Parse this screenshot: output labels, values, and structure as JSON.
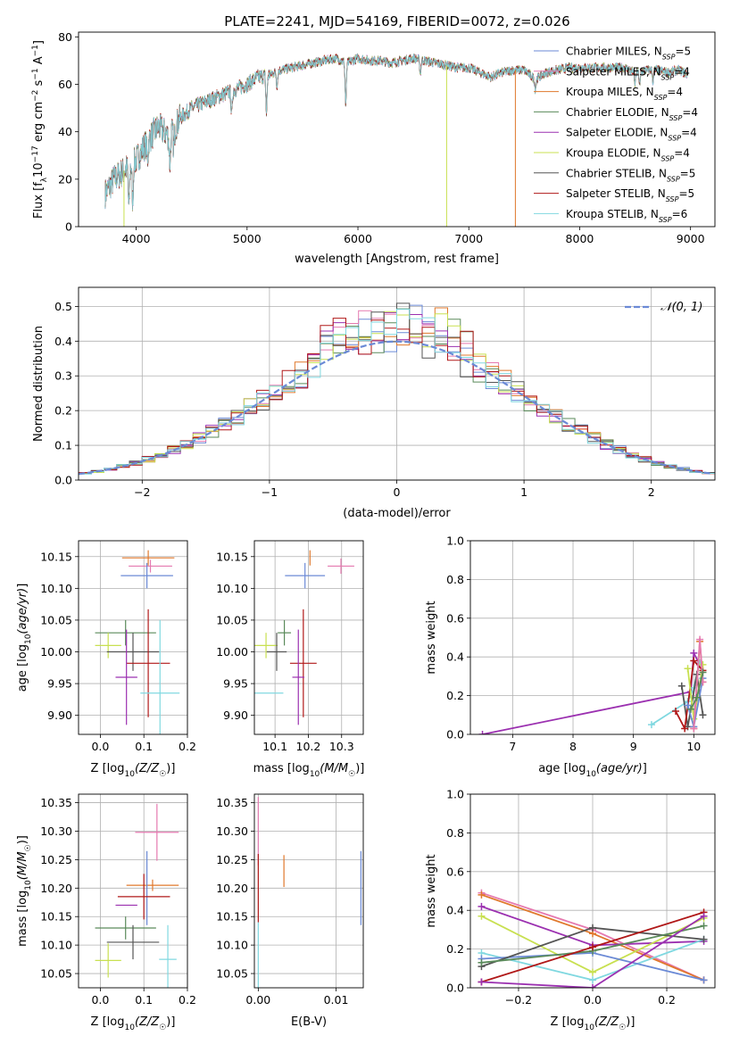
{
  "figure": {
    "title": "PLATE=2241, MJD=54169, FIBERID=0072, z=0.026"
  },
  "palette": {
    "Chabrier MILES": "#6b8ad6",
    "Salpeter MILES": "#e57ab0",
    "Kroupa MILES": "#e0782c",
    "Chabrier ELODIE": "#5a8a5a",
    "Salpeter ELODIE": "#9b30b0",
    "Kroupa ELODIE": "#c8e050",
    "Chabrier STELIB": "#555555",
    "Salpeter STELIB": "#b01818",
    "Kroupa STELIB": "#80d8e0"
  },
  "chart_data": [
    {
      "id": "spectrum",
      "type": "line",
      "title": "PLATE=2241, MJD=54169, FIBERID=0072, z=0.026",
      "xlabel": "wavelength [Angstrom, rest frame]",
      "ylabel": "Flux [f_λ 10^-17 erg cm^-2 s^-1 A^-1]",
      "xlim": [
        3480,
        9220
      ],
      "ylim": [
        0,
        82
      ],
      "xticks": [
        4000,
        5000,
        6000,
        7000,
        8000,
        9000
      ],
      "yticks": [
        0,
        20,
        40,
        60,
        80
      ],
      "grid": false,
      "legend_position": "top-right",
      "legend": [
        {
          "label": "Chabrier MILES, N",
          "sub": "SSP",
          "suffix": "=5"
        },
        {
          "label": "Salpeter MILES, N",
          "sub": "SSP",
          "suffix": "=4"
        },
        {
          "label": "Kroupa MILES, N",
          "sub": "SSP",
          "suffix": "=4"
        },
        {
          "label": "Chabrier ELODIE, N",
          "sub": "SSP",
          "suffix": "=4"
        },
        {
          "label": "Salpeter ELODIE, N",
          "sub": "SSP",
          "suffix": "=4"
        },
        {
          "label": "Kroupa ELODIE, N",
          "sub": "SSP",
          "suffix": "=4"
        },
        {
          "label": "Chabrier STELIB, N",
          "sub": "SSP",
          "suffix": "=5"
        },
        {
          "label": "Salpeter STELIB, N",
          "sub": "SSP",
          "suffix": "=5"
        },
        {
          "label": "Kroupa STELIB, N",
          "sub": "SSP",
          "suffix": "=6"
        }
      ],
      "continuum": [
        [
          3720,
          14
        ],
        [
          3800,
          20
        ],
        [
          3900,
          24
        ],
        [
          4000,
          28
        ],
        [
          4100,
          36
        ],
        [
          4200,
          42
        ],
        [
          4300,
          38
        ],
        [
          4400,
          46
        ],
        [
          4500,
          50
        ],
        [
          4600,
          52
        ],
        [
          4700,
          54
        ],
        [
          4800,
          56
        ],
        [
          4900,
          58
        ],
        [
          5000,
          60
        ],
        [
          5100,
          63
        ],
        [
          5200,
          64
        ],
        [
          5300,
          66
        ],
        [
          5400,
          67
        ],
        [
          5500,
          68
        ],
        [
          5600,
          69
        ],
        [
          5700,
          70
        ],
        [
          5800,
          71
        ],
        [
          5900,
          69
        ],
        [
          6000,
          71
        ],
        [
          6100,
          70
        ],
        [
          6200,
          70
        ],
        [
          6300,
          69
        ],
        [
          6400,
          70
        ],
        [
          6500,
          71
        ],
        [
          6600,
          70
        ],
        [
          6700,
          69
        ],
        [
          6800,
          68
        ],
        [
          6900,
          67
        ],
        [
          7000,
          67
        ],
        [
          7100,
          65
        ],
        [
          7200,
          63
        ],
        [
          7300,
          65
        ],
        [
          7400,
          66
        ],
        [
          7500,
          66
        ],
        [
          7600,
          62
        ],
        [
          7700,
          65
        ],
        [
          7800,
          66
        ],
        [
          7900,
          67
        ],
        [
          8000,
          67
        ],
        [
          8100,
          67
        ],
        [
          8200,
          67
        ],
        [
          8300,
          67
        ],
        [
          8400,
          67
        ],
        [
          8500,
          65
        ],
        [
          8600,
          66
        ],
        [
          8700,
          66
        ],
        [
          8800,
          65
        ],
        [
          8900,
          66
        ],
        [
          8970,
          64
        ]
      ],
      "absorption_features": [
        [
          3934,
          18
        ],
        [
          3968,
          16
        ],
        [
          4102,
          8
        ],
        [
          4304,
          12
        ],
        [
          4340,
          8
        ],
        [
          4861,
          10
        ],
        [
          5175,
          16
        ],
        [
          5270,
          6
        ],
        [
          5890,
          18
        ],
        [
          6563,
          6
        ],
        [
          7600,
          4
        ],
        [
          8498,
          5
        ],
        [
          8542,
          6
        ],
        [
          8662,
          5
        ]
      ],
      "dropouts": [
        {
          "model": "Kroupa ELODIE",
          "wavelength": 3890,
          "ymin": 0
        },
        {
          "model": "Kroupa ELODIE",
          "wavelength": 6800,
          "ymin": 0
        },
        {
          "model": "Kroupa MILES",
          "wavelength": 7420,
          "ymin": 0
        }
      ]
    },
    {
      "id": "residuals",
      "type": "line",
      "xlabel": "(data-model)/error",
      "ylabel": "Normed distribution",
      "xlim": [
        -2.5,
        2.5
      ],
      "ylim": [
        0,
        0.555
      ],
      "xticks": [
        -2,
        -1,
        0,
        1,
        2
      ],
      "yticks": [
        0.0,
        0.1,
        0.2,
        0.3,
        0.4,
        0.5
      ],
      "grid": true,
      "legend_position": "top-right",
      "reference_curve": {
        "label": "𝒩(0, 1)",
        "style": "dashed",
        "color": "#6b8ad6"
      },
      "series_kind": "step histograms (bin width 0.1), one per model"
    },
    {
      "id": "Z_vs_age",
      "type": "scatter",
      "xlabel": "Z [log10(Z/Z☉)]",
      "ylabel": "age [log10(age/yr)]",
      "xlim": [
        -0.05,
        0.2
      ],
      "ylim": [
        9.87,
        10.175
      ],
      "xticks": [
        0.0,
        0.1,
        0.2
      ],
      "yticks": [
        9.9,
        9.95,
        10.0,
        10.05,
        10.1,
        10.15
      ],
      "grid": true,
      "points": [
        {
          "model": "Kroupa MILES",
          "x": 0.11,
          "xerr": 0.06,
          "y": 10.148,
          "yerr": 0.012
        },
        {
          "model": "Salpeter MILES",
          "x": 0.115,
          "xerr": 0.05,
          "y": 10.135,
          "yerr": 0.01
        },
        {
          "model": "Chabrier MILES",
          "x": 0.107,
          "xerr": 0.06,
          "y": 10.12,
          "yerr": 0.02
        },
        {
          "model": "Chabrier ELODIE",
          "x": 0.058,
          "xerr": 0.07,
          "y": 10.03,
          "yerr": 0.02
        },
        {
          "model": "Kroupa ELODIE",
          "x": 0.018,
          "xerr": 0.03,
          "y": 10.01,
          "yerr": 0.02
        },
        {
          "model": "Chabrier STELIB",
          "x": 0.075,
          "xerr": 0.06,
          "y": 10.0,
          "yerr": 0.03
        },
        {
          "model": "Salpeter STELIB",
          "x": 0.11,
          "xerr": 0.05,
          "y": 9.982,
          "yerr": 0.085
        },
        {
          "model": "Salpeter ELODIE",
          "x": 0.06,
          "xerr": 0.025,
          "y": 9.96,
          "yerr": 0.075
        },
        {
          "model": "Kroupa STELIB",
          "x": 0.137,
          "xerr": 0.045,
          "y": 9.935,
          "yerr": 0.115
        }
      ]
    },
    {
      "id": "mass_vs_age",
      "type": "scatter",
      "xlabel": "mass [log10(M/M☉)]",
      "ylabel": "",
      "xlim": [
        10.038,
        10.365
      ],
      "ylim": [
        9.87,
        10.175
      ],
      "xticks": [
        10.1,
        10.2,
        10.3
      ],
      "yticks": [
        9.9,
        9.95,
        10.0,
        10.05,
        10.1,
        10.15
      ],
      "grid": true,
      "points": [
        {
          "model": "Kroupa MILES",
          "x": 10.205,
          "xerr": 0.0,
          "y": 10.148,
          "yerr": 0.012
        },
        {
          "model": "Salpeter MILES",
          "x": 10.298,
          "xerr": 0.04,
          "y": 10.135,
          "yerr": 0.012
        },
        {
          "model": "Chabrier MILES",
          "x": 10.19,
          "xerr": 0.06,
          "y": 10.12,
          "yerr": 0.02
        },
        {
          "model": "Chabrier ELODIE",
          "x": 10.128,
          "xerr": 0.02,
          "y": 10.03,
          "yerr": 0.02
        },
        {
          "model": "Kroupa ELODIE",
          "x": 10.073,
          "xerr": 0.035,
          "y": 10.01,
          "yerr": 0.02
        },
        {
          "model": "Chabrier STELIB",
          "x": 10.105,
          "xerr": 0.03,
          "y": 10.0,
          "yerr": 0.03
        },
        {
          "model": "Salpeter STELIB",
          "x": 10.185,
          "xerr": 0.04,
          "y": 9.982,
          "yerr": 0.085
        },
        {
          "model": "Salpeter ELODIE",
          "x": 10.17,
          "xerr": 0.018,
          "y": 9.96,
          "yerr": 0.075
        },
        {
          "model": "Kroupa STELIB",
          "x": 10.075,
          "xerr": 0.05,
          "y": 9.935,
          "yerr": 0.0
        }
      ]
    },
    {
      "id": "age_vs_weight",
      "type": "line",
      "xlabel": "age [log10(age/yr)]",
      "ylabel": "mass weight",
      "xlim": [
        6.3,
        10.35
      ],
      "ylim": [
        0.0,
        1.0
      ],
      "xticks": [
        7,
        8,
        9,
        10
      ],
      "yticks": [
        0.0,
        0.2,
        0.4,
        0.6,
        0.8,
        1.0
      ],
      "grid": true,
      "series": [
        {
          "model": "Salpeter ELODIE",
          "points": [
            [
              6.5,
              0.0
            ],
            [
              9.95,
              0.22
            ],
            [
              10.0,
              0.42
            ],
            [
              10.1,
              0.36
            ]
          ]
        },
        {
          "model": "Kroupa STELIB",
          "points": [
            [
              9.3,
              0.05
            ],
            [
              9.9,
              0.17
            ],
            [
              10.0,
              0.24
            ],
            [
              10.1,
              0.37
            ]
          ]
        },
        {
          "model": "Chabrier STELIB",
          "points": [
            [
              9.8,
              0.25
            ],
            [
              9.9,
              0.04
            ],
            [
              10.05,
              0.31
            ],
            [
              10.15,
              0.1
            ]
          ]
        },
        {
          "model": "Salpeter STELIB",
          "points": [
            [
              9.7,
              0.12
            ],
            [
              9.85,
              0.03
            ],
            [
              10.0,
              0.38
            ],
            [
              10.15,
              0.33
            ]
          ]
        },
        {
          "model": "Kroupa ELODIE",
          "points": [
            [
              9.9,
              0.34
            ],
            [
              10.0,
              0.08
            ],
            [
              10.15,
              0.36
            ]
          ]
        },
        {
          "model": "Chabrier MILES",
          "points": [
            [
              9.9,
              0.15
            ],
            [
              10.0,
              0.04
            ],
            [
              10.15,
              0.29
            ]
          ]
        },
        {
          "model": "Kroupa MILES",
          "points": [
            [
              10.0,
              0.03
            ],
            [
              10.1,
              0.48
            ],
            [
              10.15,
              0.27
            ]
          ]
        },
        {
          "model": "Salpeter MILES",
          "points": [
            [
              10.0,
              0.03
            ],
            [
              10.1,
              0.49
            ],
            [
              10.15,
              0.27
            ]
          ]
        },
        {
          "model": "Chabrier ELODIE",
          "points": [
            [
              9.95,
              0.13
            ],
            [
              10.05,
              0.19
            ],
            [
              10.15,
              0.32
            ]
          ]
        }
      ]
    },
    {
      "id": "Z_vs_mass",
      "type": "scatter",
      "xlabel": "Z [log10(Z/Z☉)]",
      "ylabel": "mass [log10(M/M☉)]",
      "xlim": [
        -0.05,
        0.2
      ],
      "ylim": [
        10.025,
        10.365
      ],
      "xticks": [
        0.0,
        0.1,
        0.2
      ],
      "yticks": [
        10.05,
        10.1,
        10.15,
        10.2,
        10.25,
        10.3,
        10.35
      ],
      "grid": true,
      "points": [
        {
          "model": "Salpeter MILES",
          "x": 0.13,
          "xerr": 0.05,
          "y": 10.298,
          "yerr": 0.05
        },
        {
          "model": "Kroupa MILES",
          "x": 0.12,
          "xerr": 0.06,
          "y": 10.205,
          "yerr": 0.01
        },
        {
          "model": "Chabrier MILES",
          "x": 0.107,
          "xerr": 0.0,
          "y": 10.2,
          "yerr": 0.065
        },
        {
          "model": "Salpeter STELIB",
          "x": 0.1,
          "xerr": 0.06,
          "y": 10.185,
          "yerr": 0.04
        },
        {
          "model": "Salpeter ELODIE",
          "x": 0.06,
          "xerr": 0.025,
          "y": 10.17,
          "yerr": 0.0
        },
        {
          "model": "Chabrier ELODIE",
          "x": 0.058,
          "xerr": 0.07,
          "y": 10.13,
          "yerr": 0.02
        },
        {
          "model": "Chabrier STELIB",
          "x": 0.075,
          "xerr": 0.06,
          "y": 10.105,
          "yerr": 0.03
        },
        {
          "model": "Kroupa STELIB",
          "x": 0.155,
          "xerr": 0.02,
          "y": 10.075,
          "yerr": 0.06
        },
        {
          "model": "Kroupa ELODIE",
          "x": 0.018,
          "xerr": 0.03,
          "y": 10.073,
          "yerr": 0.03
        }
      ]
    },
    {
      "id": "ebv_vs_mass",
      "type": "scatter",
      "xlabel": "E(B-V)",
      "ylabel": "",
      "xlim": [
        -0.0005,
        0.0135
      ],
      "ylim": [
        10.025,
        10.365
      ],
      "xticks": [
        0.0,
        0.01
      ],
      "xtick_labels": [
        "0.00",
        "0.01"
      ],
      "yticks": [
        10.05,
        10.1,
        10.15,
        10.2,
        10.25,
        10.3,
        10.35
      ],
      "grid": true,
      "points": [
        {
          "model": "Chabrier MILES",
          "x": 0.0132,
          "y": 10.2,
          "yerr": 0.065
        },
        {
          "model": "Kroupa MILES",
          "x": 0.0033,
          "y": 10.23,
          "yerr": 0.028
        },
        {
          "model": "Salpeter MILES",
          "x": 0.0,
          "y": 10.3,
          "yerr": 0.06
        },
        {
          "model": "Salpeter STELIB",
          "x": 0.0,
          "y": 10.2,
          "yerr": 0.06
        },
        {
          "model": "Kroupa STELIB",
          "x": 0.0,
          "y": 10.08,
          "yerr": 0.06
        }
      ]
    },
    {
      "id": "Z_vs_weight",
      "type": "line",
      "xlabel": "Z [log10(Z/Z☉)]",
      "ylabel": "mass weight",
      "xlim": [
        -0.33,
        0.33
      ],
      "ylim": [
        0.0,
        1.0
      ],
      "xticks": [
        -0.2,
        0.0,
        0.2
      ],
      "xtick_labels": [
        "−0.2",
        "0.0",
        "0.2"
      ],
      "yticks": [
        0.0,
        0.2,
        0.4,
        0.6,
        0.8,
        1.0
      ],
      "grid": true,
      "series": [
        {
          "model": "Salpeter MILES",
          "points": [
            [
              -0.3,
              0.49
            ],
            [
              0.0,
              0.3
            ],
            [
              0.3,
              0.04
            ]
          ]
        },
        {
          "model": "Kroupa MILES",
          "points": [
            [
              -0.3,
              0.48
            ],
            [
              0.0,
              0.28
            ],
            [
              0.3,
              0.04
            ]
          ]
        },
        {
          "model": "Salpeter ELODIE",
          "points": [
            [
              -0.3,
              0.42
            ],
            [
              0.0,
              0.22
            ],
            [
              0.3,
              0.24
            ]
          ]
        },
        {
          "model": "Kroupa ELODIE",
          "points": [
            [
              -0.3,
              0.37
            ],
            [
              0.0,
              0.08
            ],
            [
              0.3,
              0.36
            ]
          ]
        },
        {
          "model": "Kroupa STELIB",
          "points": [
            [
              -0.3,
              0.18
            ],
            [
              0.0,
              0.04
            ],
            [
              0.3,
              0.25
            ]
          ]
        },
        {
          "model": "Chabrier MILES",
          "points": [
            [
              -0.3,
              0.15
            ],
            [
              0.0,
              0.18
            ],
            [
              0.3,
              0.04
            ]
          ]
        },
        {
          "model": "Chabrier STELIB",
          "points": [
            [
              -0.3,
              0.11
            ],
            [
              0.0,
              0.31
            ],
            [
              0.3,
              0.25
            ]
          ]
        },
        {
          "model": "Chabrier ELODIE",
          "points": [
            [
              -0.3,
              0.13
            ],
            [
              0.0,
              0.19
            ],
            [
              0.3,
              0.32
            ]
          ]
        },
        {
          "model": "Salpeter STELIB",
          "points": [
            [
              -0.3,
              0.03
            ],
            [
              0.0,
              0.21
            ],
            [
              0.3,
              0.39
            ]
          ]
        },
        {
          "model": "Salpeter ELODIE ",
          "points": [
            [
              -0.3,
              0.03
            ],
            [
              0.0,
              0.0
            ],
            [
              0.3,
              0.37
            ]
          ]
        }
      ]
    }
  ]
}
